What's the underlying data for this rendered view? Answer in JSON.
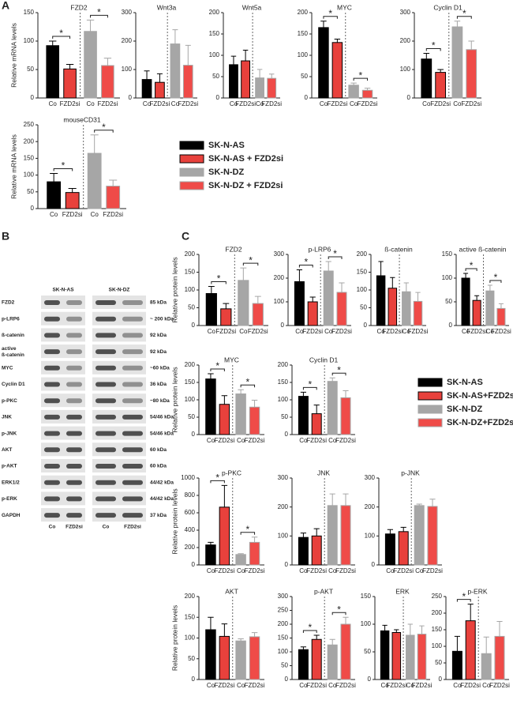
{
  "panel_labels": [
    "A",
    "B",
    "C"
  ],
  "chart_data": [
    {
      "type": "bar",
      "title": "FZD2",
      "ylabel": "Relative mRNA levels",
      "categories": [
        "Co",
        "FZD2si",
        "Co",
        "FZD2si"
      ],
      "values": [
        92,
        51,
        117,
        57
      ],
      "errors": [
        8,
        8,
        20,
        13
      ],
      "ylim": [
        0,
        150
      ],
      "yticks": [
        0,
        50,
        100,
        150
      ],
      "significance": [
        {
          "bars": [
            0,
            1
          ],
          "label": "*"
        },
        {
          "bars": [
            2,
            3
          ],
          "label": "*"
        }
      ]
    },
    {
      "type": "bar",
      "title": "Wnt3a",
      "categories": [
        "Co",
        "FZD2si",
        "Co",
        "FZD2si"
      ],
      "values": [
        65,
        55,
        190,
        115
      ],
      "errors": [
        30,
        30,
        50,
        70
      ],
      "ylim": [
        0,
        300
      ],
      "yticks": [
        0,
        100,
        200,
        300
      ],
      "significance": []
    },
    {
      "type": "bar",
      "title": "Wnt5a",
      "categories": [
        "Co",
        "FZD2si",
        "Co",
        "FZD2si"
      ],
      "values": [
        78,
        87,
        47,
        46
      ],
      "errors": [
        20,
        25,
        20,
        10
      ],
      "ylim": [
        0,
        200
      ],
      "yticks": [
        0,
        50,
        100,
        150,
        200
      ],
      "significance": []
    },
    {
      "type": "bar",
      "title": "MYC",
      "categories": [
        "Co",
        "FZD2si",
        "Co",
        "FZD2si"
      ],
      "values": [
        165,
        130,
        30,
        18
      ],
      "errors": [
        15,
        8,
        5,
        5
      ],
      "ylim": [
        0,
        200
      ],
      "yticks": [
        0,
        50,
        100,
        150,
        200
      ],
      "significance": [
        {
          "bars": [
            0,
            1
          ],
          "label": "*"
        },
        {
          "bars": [
            2,
            3
          ],
          "label": "*"
        }
      ]
    },
    {
      "type": "bar",
      "title": "Cyclin D1",
      "categories": [
        "Co",
        "FZD2si",
        "Co",
        "FZD2si"
      ],
      "values": [
        137,
        90,
        250,
        170
      ],
      "errors": [
        20,
        10,
        20,
        30
      ],
      "ylim": [
        0,
        300
      ],
      "yticks": [
        0,
        100,
        200,
        300
      ],
      "significance": [
        {
          "bars": [
            0,
            1
          ],
          "label": "*"
        },
        {
          "bars": [
            2,
            3
          ],
          "label": "*"
        }
      ]
    },
    {
      "type": "bar",
      "title": "mouseCD31",
      "ylabel": "Relative mRNA levels",
      "categories": [
        "Co",
        "FZD2si",
        "Co",
        "FZD2si"
      ],
      "values": [
        80,
        48,
        165,
        67
      ],
      "errors": [
        25,
        12,
        55,
        18
      ],
      "ylim": [
        0,
        250
      ],
      "yticks": [
        0,
        50,
        100,
        150,
        200,
        250
      ],
      "significance": [
        {
          "bars": [
            0,
            1
          ],
          "label": "*"
        },
        {
          "bars": [
            2,
            3
          ],
          "label": "*"
        }
      ]
    },
    {
      "type": "bar",
      "title": "FZD2",
      "ylabel": "Relative protein levels",
      "categories": [
        "Co",
        "FZD2si",
        "Co",
        "FZD2si"
      ],
      "values": [
        90,
        47,
        127,
        62
      ],
      "errors": [
        20,
        15,
        35,
        20
      ],
      "ylim": [
        0,
        200
      ],
      "yticks": [
        0,
        50,
        100,
        150,
        200
      ],
      "significance": [
        {
          "bars": [
            0,
            1
          ],
          "label": "*"
        },
        {
          "bars": [
            2,
            3
          ],
          "label": "*"
        }
      ]
    },
    {
      "type": "bar",
      "title": "p-LRP6",
      "categories": [
        "Co",
        "FZD2si",
        "Co",
        "FZD2si"
      ],
      "values": [
        185,
        100,
        230,
        140
      ],
      "errors": [
        50,
        20,
        40,
        40
      ],
      "ylim": [
        0,
        300
      ],
      "yticks": [
        0,
        100,
        200,
        300
      ],
      "significance": [
        {
          "bars": [
            0,
            1
          ],
          "label": "*"
        },
        {
          "bars": [
            2,
            3
          ],
          "label": "*"
        }
      ]
    },
    {
      "type": "bar",
      "title": "ß-catenin",
      "categories": [
        "Co",
        "FZD2si",
        "Co",
        "FZD2si"
      ],
      "values": [
        140,
        105,
        95,
        68
      ],
      "errors": [
        40,
        30,
        25,
        25
      ],
      "ylim": [
        0,
        200
      ],
      "yticks": [
        0,
        50,
        100,
        150,
        200
      ],
      "significance": []
    },
    {
      "type": "bar",
      "title": "active ß-catenin",
      "categories": [
        "Co",
        "FZD2si",
        "Co",
        "FZD2si"
      ],
      "values": [
        100,
        53,
        73,
        36
      ],
      "errors": [
        10,
        10,
        12,
        10
      ],
      "ylim": [
        0,
        150
      ],
      "yticks": [
        0,
        50,
        100,
        150
      ],
      "significance": [
        {
          "bars": [
            0,
            1
          ],
          "label": "*"
        },
        {
          "bars": [
            2,
            3
          ],
          "label": "*"
        }
      ]
    },
    {
      "type": "bar",
      "title": "MYC",
      "ylabel": "Relative protein levels",
      "categories": [
        "Co",
        "FZD2si",
        "Co",
        "FZD2si"
      ],
      "values": [
        160,
        87,
        117,
        79
      ],
      "errors": [
        15,
        25,
        12,
        20
      ],
      "ylim": [
        0,
        200
      ],
      "yticks": [
        0,
        50,
        100,
        150,
        200
      ],
      "significance": [
        {
          "bars": [
            0,
            1
          ],
          "label": "*"
        },
        {
          "bars": [
            2,
            3
          ],
          "label": "*"
        }
      ]
    },
    {
      "type": "bar",
      "title": "Cyclin D1",
      "categories": [
        "Co",
        "FZD2si",
        "Co",
        "FZD2si"
      ],
      "values": [
        110,
        60,
        153,
        106
      ],
      "errors": [
        12,
        25,
        10,
        20
      ],
      "ylim": [
        0,
        200
      ],
      "yticks": [
        0,
        50,
        100,
        150,
        200
      ],
      "significance": [
        {
          "bars": [
            0,
            1
          ],
          "label": "*"
        },
        {
          "bars": [
            2,
            3
          ],
          "label": "*"
        }
      ]
    },
    {
      "type": "bar",
      "title": "p-PKC",
      "ylabel": "Relative protein levels",
      "categories": [
        "Co",
        "FZD2si",
        "Co",
        "FZD2si"
      ],
      "values": [
        230,
        665,
        120,
        260
      ],
      "errors": [
        30,
        250,
        10,
        60
      ],
      "ylim": [
        0,
        1000
      ],
      "yticks": [
        0,
        200,
        400,
        600,
        800,
        1000
      ],
      "significance": [
        {
          "bars": [
            0,
            1
          ],
          "label": "*"
        },
        {
          "bars": [
            2,
            3
          ],
          "label": "*"
        }
      ]
    },
    {
      "type": "bar",
      "title": "JNK",
      "categories": [
        "Co",
        "FZD2si",
        "Co",
        "FZD2si"
      ],
      "values": [
        95,
        100,
        205,
        205
      ],
      "errors": [
        15,
        25,
        40,
        40
      ],
      "ylim": [
        0,
        300
      ],
      "yticks": [
        0,
        100,
        200,
        300
      ],
      "significance": []
    },
    {
      "type": "bar",
      "title": "p-JNK",
      "categories": [
        "Co",
        "FZD2si",
        "Co",
        "FZD2si"
      ],
      "values": [
        107,
        115,
        205,
        202
      ],
      "errors": [
        15,
        15,
        5,
        25
      ],
      "ylim": [
        0,
        300
      ],
      "yticks": [
        0,
        100,
        200,
        300
      ],
      "significance": []
    },
    {
      "type": "bar",
      "title": "AKT",
      "ylabel": "Relative protein levels",
      "categories": [
        "Co",
        "FZD2si",
        "Co",
        "FZD2si"
      ],
      "values": [
        120,
        104,
        93,
        103
      ],
      "errors": [
        30,
        30,
        5,
        10
      ],
      "ylim": [
        0,
        200
      ],
      "yticks": [
        0,
        50,
        100,
        150,
        200
      ],
      "significance": []
    },
    {
      "type": "bar",
      "title": "p-AKT",
      "categories": [
        "Co",
        "FZD2si",
        "Co",
        "FZD2si"
      ],
      "values": [
        108,
        145,
        125,
        200
      ],
      "errors": [
        10,
        15,
        20,
        25
      ],
      "ylim": [
        0,
        300
      ],
      "yticks": [
        0,
        50,
        100,
        150,
        200,
        250,
        300
      ],
      "significance": [
        {
          "bars": [
            0,
            1
          ],
          "label": "*"
        },
        {
          "bars": [
            2,
            3
          ],
          "label": "*"
        }
      ]
    },
    {
      "type": "bar",
      "title": "ERK",
      "categories": [
        "Co",
        "FZD2si",
        "Co",
        "FZD2si"
      ],
      "values": [
        88,
        85,
        80,
        82
      ],
      "errors": [
        10,
        5,
        20,
        15
      ],
      "ylim": [
        0,
        150
      ],
      "yticks": [
        0,
        50,
        100,
        150
      ],
      "significance": []
    },
    {
      "type": "bar",
      "title": "p-ERK",
      "categories": [
        "Co",
        "FZD2si",
        "Co",
        "FZD2si"
      ],
      "values": [
        85,
        177,
        78,
        130
      ],
      "errors": [
        45,
        50,
        50,
        45
      ],
      "ylim": [
        0,
        250
      ],
      "yticks": [
        0,
        50,
        100,
        150,
        200,
        250
      ],
      "significance": [
        {
          "bars": [
            0,
            1
          ],
          "label": "*"
        }
      ]
    }
  ],
  "legends": [
    {
      "entries": [
        {
          "name": "SK-N-AS",
          "color": "#000000",
          "edge": "#000000"
        },
        {
          "name": "SK-N-AS + FZD2si",
          "color": "#e8413c",
          "edge": "#000000"
        },
        {
          "name": "SK-N-DZ",
          "color": "#a6a6a6",
          "edge": "#a6a6a6"
        },
        {
          "name": "SK-N-DZ + FZD2si",
          "color": "#ef4b48",
          "edge": "#a6a6a6"
        }
      ]
    },
    {
      "entries": [
        {
          "name": "SK-N-AS",
          "color": "#000000",
          "edge": "#000000"
        },
        {
          "name": "SK-N-AS+FZD2si",
          "color": "#e8413c",
          "edge": "#000000"
        },
        {
          "name": "SK-N-DZ",
          "color": "#a6a6a6",
          "edge": "#a6a6a6"
        },
        {
          "name": "SK-N-DZ+FZD2si",
          "color": "#ef4b48",
          "edge": "#a6a6a6"
        }
      ]
    }
  ],
  "blot": {
    "groups": [
      "SK-N-AS",
      "SK-N-DZ"
    ],
    "lanes": [
      "Co",
      "FZD2si"
    ],
    "rows": [
      {
        "label": "FZD2",
        "size": "85 kDa"
      },
      {
        "label": "p-LRP6",
        "size": "~ 200 kDa"
      },
      {
        "label": "ß-catenin",
        "size": "92 kDa"
      },
      {
        "label": [
          "active",
          "ß-catenin"
        ],
        "size": "92 kDa"
      },
      {
        "label": "MYC",
        "size": "~60 kDa"
      },
      {
        "label": "Cyclin D1",
        "size": "36 kDa"
      },
      {
        "label": "p-PKC",
        "size": "~80 kDa"
      },
      {
        "label": "JNK",
        "size": "54/46 kDa"
      },
      {
        "label": "p-JNK",
        "size": "54/46 kDa"
      },
      {
        "label": "AKT",
        "size": "60 kDa"
      },
      {
        "label": "p-AKT",
        "size": "60 kDa"
      },
      {
        "label": "ERK1/2",
        "size": "44/42 kDa"
      },
      {
        "label": "p-ERK",
        "size": "44/42 kDa"
      },
      {
        "label": "GAPDH",
        "size": "37 kDa"
      }
    ]
  }
}
